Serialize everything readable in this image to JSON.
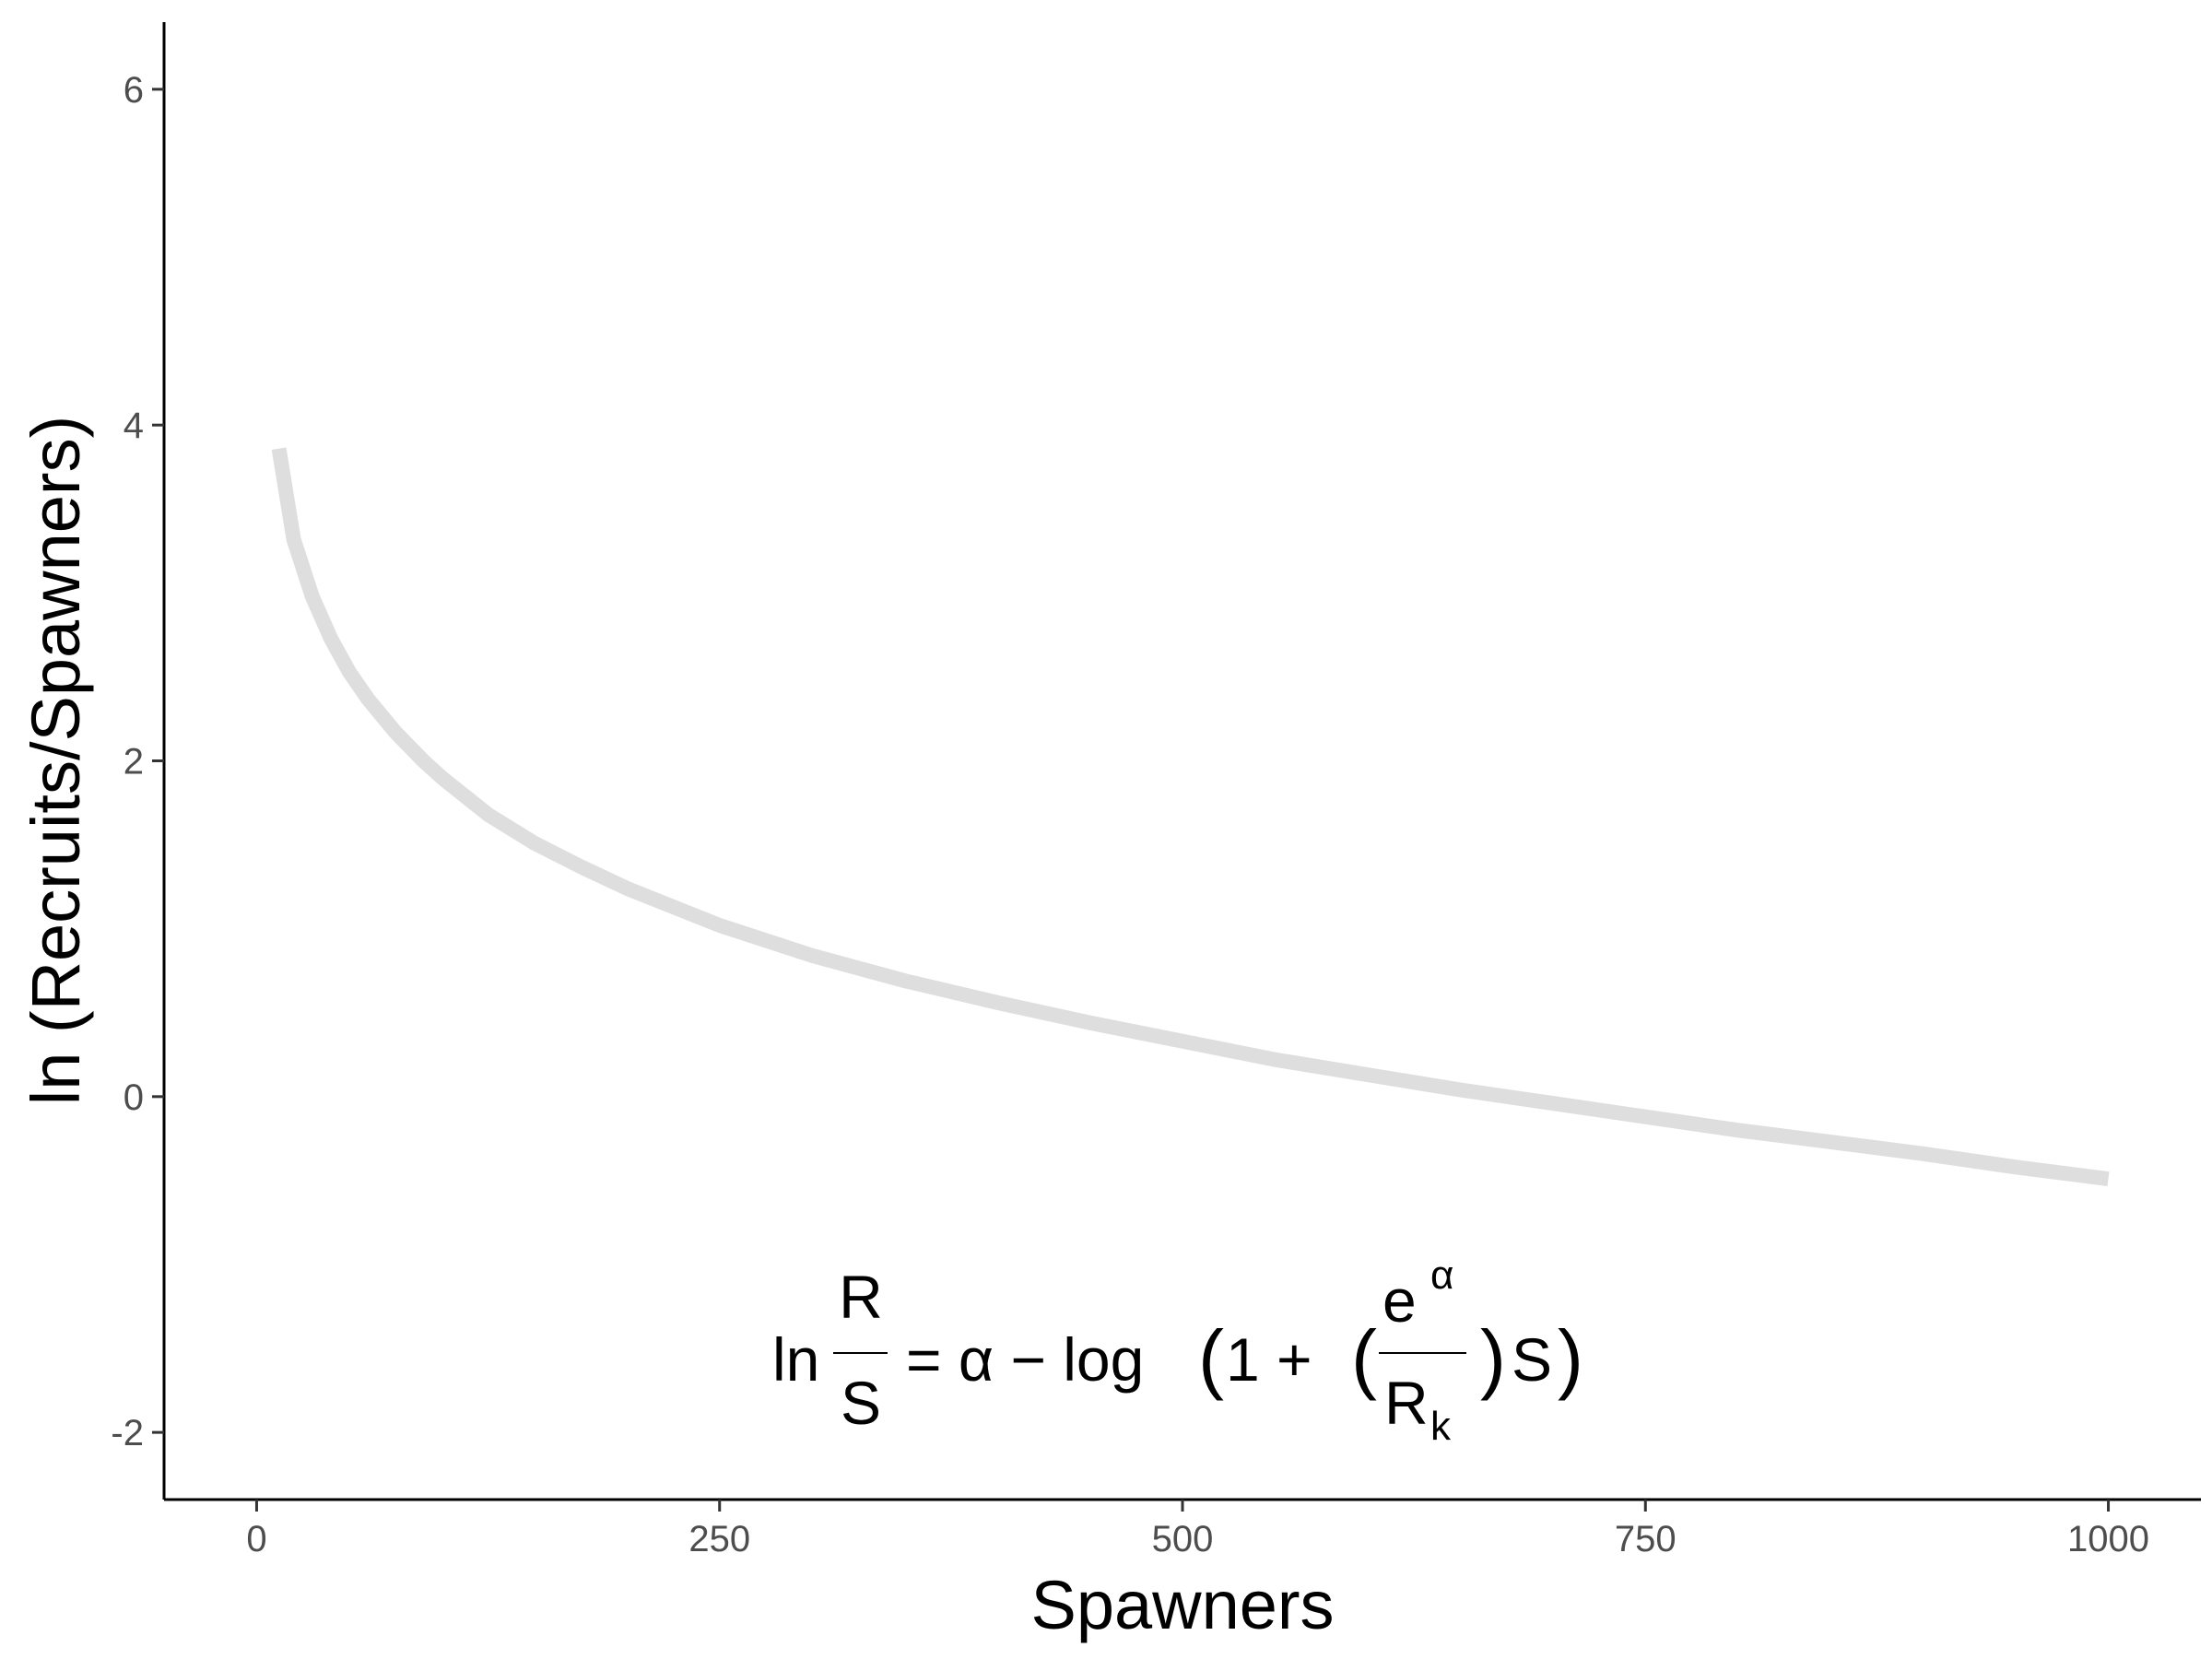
{
  "chart_data": {
    "type": "line",
    "title": "",
    "xlabel": "Spawners",
    "ylabel": "ln (Recruits/Spawners)",
    "xlim": [
      -50,
      1050
    ],
    "ylim": [
      -2.4,
      6.4
    ],
    "x_ticks": [
      0,
      250,
      500,
      750,
      1000
    ],
    "x_tick_labels": [
      "0",
      "250",
      "500",
      "750",
      "1000"
    ],
    "y_ticks": [
      -2,
      0,
      2,
      4,
      6
    ],
    "y_tick_labels": [
      "-2",
      "0",
      "2",
      "4",
      "6"
    ],
    "grid": false,
    "legend": "none",
    "series": [
      {
        "color": "#dedede",
        "x": [
          12,
          20,
          30,
          40,
          50,
          60,
          75,
          90,
          100,
          125,
          150,
          175,
          200,
          250,
          300,
          350,
          400,
          450,
          500,
          550,
          600,
          650,
          700,
          750,
          800,
          850,
          900,
          950,
          1000
        ],
        "y": [
          3.86,
          3.32,
          2.98,
          2.73,
          2.53,
          2.37,
          2.17,
          2.0,
          1.9,
          1.68,
          1.51,
          1.37,
          1.24,
          1.02,
          0.84,
          0.69,
          0.56,
          0.44,
          0.33,
          0.22,
          0.13,
          0.04,
          -0.04,
          -0.12,
          -0.2,
          -0.27,
          -0.34,
          -0.42,
          -0.49
        ]
      }
    ],
    "annotation": {
      "lhs_fn": "ln",
      "lhs_num": "R",
      "lhs_den": "S",
      "rhs_start": "= α − log",
      "paren_open": "(",
      "rhs_one": "1 + ",
      "inner_open": "(",
      "frac_num_base": "e",
      "frac_num_sup": "α",
      "frac_den_base": "R",
      "frac_den_sub": "k",
      "inner_close": ")",
      "rhs_s": "S",
      "paren_close": ")"
    }
  }
}
